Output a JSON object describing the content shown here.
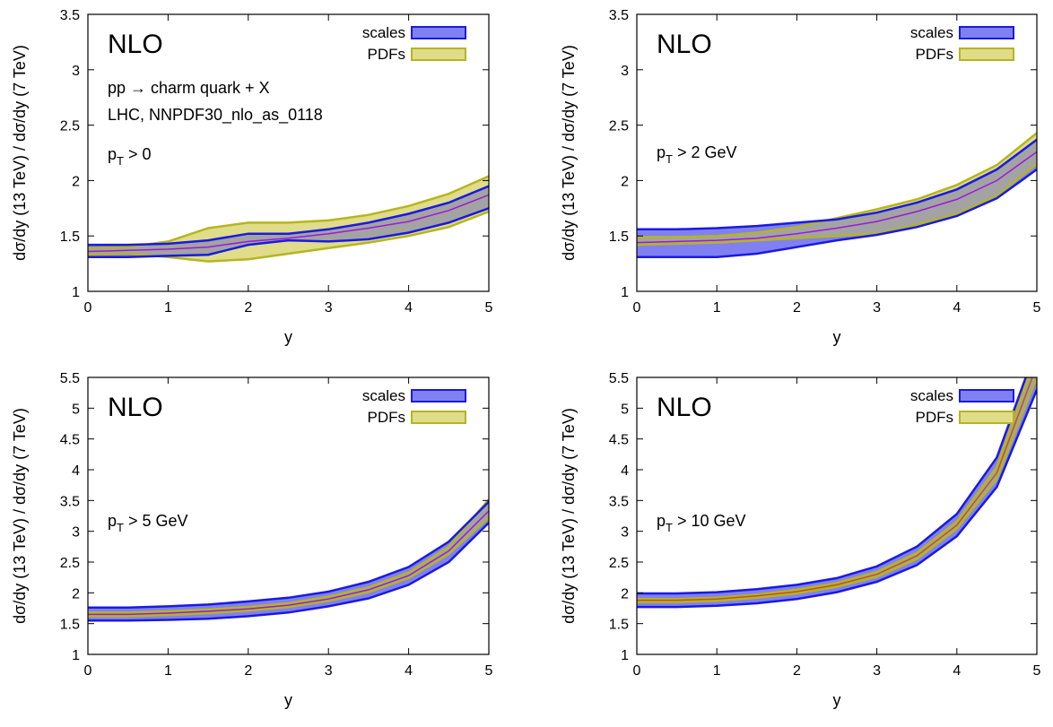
{
  "chart_data": [
    {
      "type": "area",
      "model_label": "NLO",
      "annotations": [
        "pp → charm quark + X",
        "LHC, NNPDF30_nlo_as_0118"
      ],
      "cut_label": [
        "p",
        "T",
        " > 0"
      ],
      "xlabel": "y",
      "ylabel": "dσ/dy (13 TeV) / dσ/dy (7 TeV)",
      "xlim": [
        0,
        5
      ],
      "ylim": [
        1,
        3.5
      ],
      "xticks": [
        "0",
        "1",
        "2",
        "3",
        "4",
        "5"
      ],
      "yticks": [
        "1",
        "1.5",
        "2",
        "2.5",
        "3",
        "3.5"
      ],
      "legend_position": "top-right",
      "x": [
        0,
        0.5,
        1,
        1.5,
        2,
        2.5,
        3,
        3.5,
        4,
        4.5,
        5
      ],
      "central": [
        1.36,
        1.37,
        1.38,
        1.4,
        1.45,
        1.48,
        1.52,
        1.57,
        1.63,
        1.73,
        1.87
      ],
      "series": [
        {
          "name": "scales",
          "upper": [
            1.42,
            1.42,
            1.43,
            1.46,
            1.52,
            1.52,
            1.56,
            1.62,
            1.7,
            1.8,
            1.95
          ],
          "lower": [
            1.31,
            1.31,
            1.32,
            1.33,
            1.42,
            1.46,
            1.45,
            1.47,
            1.53,
            1.62,
            1.75
          ]
        },
        {
          "name": "PDFs",
          "upper": [
            1.39,
            1.4,
            1.45,
            1.57,
            1.62,
            1.62,
            1.64,
            1.69,
            1.77,
            1.88,
            2.04
          ],
          "lower": [
            1.33,
            1.34,
            1.31,
            1.27,
            1.29,
            1.34,
            1.39,
            1.44,
            1.5,
            1.58,
            1.72
          ]
        }
      ]
    },
    {
      "type": "area",
      "model_label": "NLO",
      "annotations": [],
      "cut_label": [
        "p",
        "T",
        " > 2 GeV"
      ],
      "xlabel": "y",
      "ylabel": "dσ/dy (13 TeV) / dσ/dy (7 TeV)",
      "xlim": [
        0,
        5
      ],
      "ylim": [
        1,
        3.5
      ],
      "xticks": [
        "0",
        "1",
        "2",
        "3",
        "4",
        "5"
      ],
      "yticks": [
        "1",
        "1.5",
        "2",
        "2.5",
        "3",
        "3.5"
      ],
      "legend_position": "top-right",
      "x": [
        0,
        0.5,
        1,
        1.5,
        2,
        2.5,
        3,
        3.5,
        4,
        4.5,
        5
      ],
      "central": [
        1.44,
        1.45,
        1.46,
        1.48,
        1.52,
        1.57,
        1.63,
        1.72,
        1.83,
        2.0,
        2.26
      ],
      "series": [
        {
          "name": "scales",
          "upper": [
            1.56,
            1.56,
            1.57,
            1.59,
            1.62,
            1.65,
            1.71,
            1.8,
            1.92,
            2.1,
            2.37
          ],
          "lower": [
            1.31,
            1.31,
            1.31,
            1.34,
            1.4,
            1.46,
            1.51,
            1.58,
            1.68,
            1.84,
            2.1
          ]
        },
        {
          "name": "PDFs",
          "upper": [
            1.49,
            1.49,
            1.5,
            1.53,
            1.58,
            1.66,
            1.74,
            1.83,
            1.96,
            2.14,
            2.43
          ],
          "lower": [
            1.42,
            1.43,
            1.44,
            1.46,
            1.48,
            1.5,
            1.52,
            1.6,
            1.7,
            1.86,
            2.15
          ]
        }
      ]
    },
    {
      "type": "area",
      "model_label": "NLO",
      "annotations": [],
      "cut_label": [
        "p",
        "T",
        " > 5 GeV"
      ],
      "xlabel": "y",
      "ylabel": "dσ/dy (13 TeV) / dσ/dy (7 TeV)",
      "xlim": [
        0,
        5
      ],
      "ylim": [
        1,
        5.5
      ],
      "xticks": [
        "0",
        "1",
        "2",
        "3",
        "4",
        "5"
      ],
      "yticks": [
        "1",
        "1.5",
        "2",
        "2.5",
        "3",
        "3.5",
        "4",
        "4.5",
        "5",
        "5.5"
      ],
      "legend_position": "top-right",
      "x": [
        0,
        0.5,
        1,
        1.5,
        2,
        2.5,
        3,
        3.5,
        4,
        4.5,
        5
      ],
      "central": [
        1.65,
        1.65,
        1.67,
        1.7,
        1.74,
        1.8,
        1.9,
        2.05,
        2.28,
        2.68,
        3.33
      ],
      "series": [
        {
          "name": "scales",
          "upper": [
            1.76,
            1.76,
            1.78,
            1.81,
            1.86,
            1.92,
            2.02,
            2.18,
            2.42,
            2.83,
            3.48
          ],
          "lower": [
            1.55,
            1.55,
            1.56,
            1.58,
            1.62,
            1.68,
            1.78,
            1.91,
            2.13,
            2.5,
            3.14
          ]
        },
        {
          "name": "PDFs",
          "upper": [
            1.68,
            1.68,
            1.7,
            1.73,
            1.77,
            1.83,
            1.94,
            2.09,
            2.33,
            2.75,
            3.52
          ],
          "lower": [
            1.62,
            1.62,
            1.64,
            1.67,
            1.71,
            1.77,
            1.87,
            2.01,
            2.24,
            2.63,
            3.22
          ]
        }
      ]
    },
    {
      "type": "area",
      "model_label": "NLO",
      "annotations": [],
      "cut_label": [
        "p",
        "T",
        " > 10 GeV"
      ],
      "xlabel": "y",
      "ylabel": "dσ/dy (13 TeV) / dσ/dy (7 TeV)",
      "xlim": [
        0,
        5
      ],
      "ylim": [
        1,
        5.5
      ],
      "xticks": [
        "0",
        "1",
        "2",
        "3",
        "4",
        "5"
      ],
      "yticks": [
        "1",
        "1.5",
        "2",
        "2.5",
        "3",
        "3.5",
        "4",
        "4.5",
        "5",
        "5.5"
      ],
      "legend_position": "top-right",
      "x": [
        0,
        0.5,
        1,
        1.5,
        2,
        2.5,
        3,
        3.5,
        4,
        4.5,
        5
      ],
      "central": [
        1.88,
        1.88,
        1.9,
        1.95,
        2.02,
        2.13,
        2.3,
        2.6,
        3.1,
        3.95,
        5.7
      ],
      "series": [
        {
          "name": "scales",
          "upper": [
            1.99,
            1.99,
            2.01,
            2.06,
            2.13,
            2.24,
            2.43,
            2.75,
            3.28,
            4.2,
            6.0
          ],
          "lower": [
            1.77,
            1.77,
            1.79,
            1.83,
            1.9,
            2.01,
            2.18,
            2.45,
            2.92,
            3.72,
            5.3
          ]
        },
        {
          "name": "PDFs",
          "upper": [
            1.9,
            1.9,
            1.92,
            1.97,
            2.05,
            2.16,
            2.34,
            2.65,
            3.16,
            4.05,
            5.9
          ],
          "lower": [
            1.85,
            1.85,
            1.87,
            1.92,
            1.99,
            2.1,
            2.26,
            2.55,
            3.04,
            3.85,
            5.5
          ]
        }
      ]
    }
  ],
  "colors": {
    "scales_fill": "#8080f2",
    "scales_edge": "#1a1ae0",
    "pdfs_fill": "#e0dc8a",
    "pdfs_edge": "#b5b520",
    "overlap_fill": "#a3a3a3",
    "central_line": "#9b19d9",
    "central_line_highpt": "#c8501a"
  }
}
